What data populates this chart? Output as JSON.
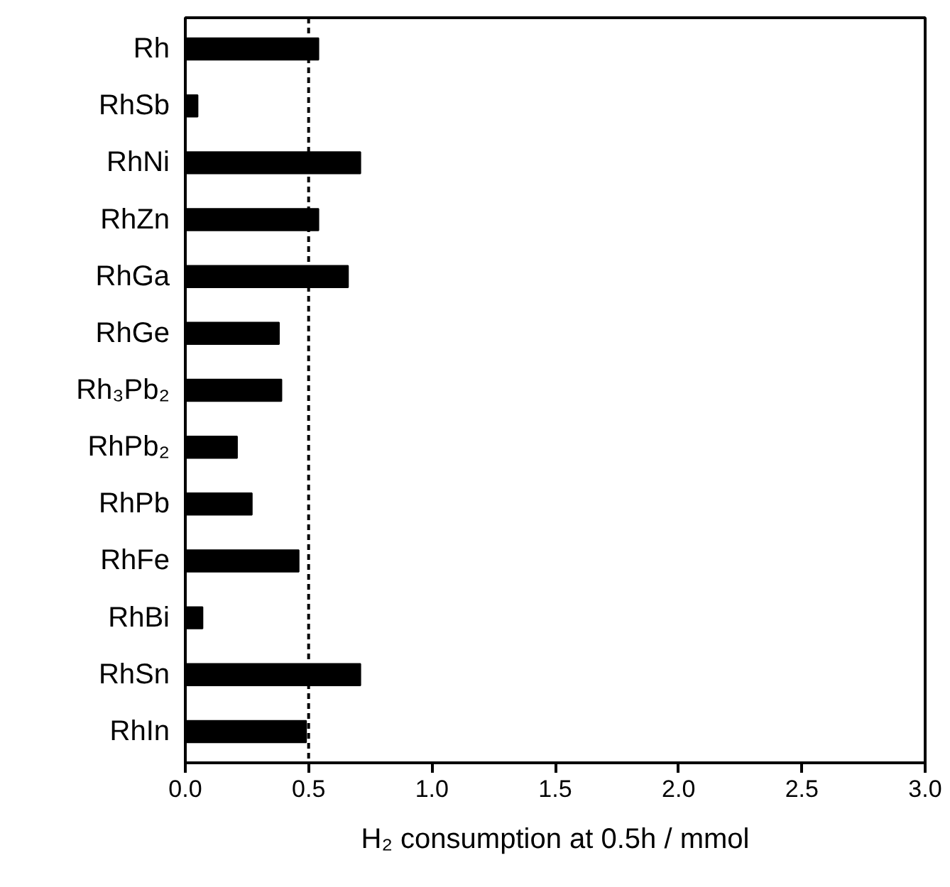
{
  "chart_data": {
    "type": "bar",
    "orientation": "horizontal",
    "xlabel": "H₂ consumption at 0.5h / mmol",
    "categories": [
      "Rh",
      "RhSb",
      "RhNi",
      "RhZn",
      "RhGa",
      "RhGe",
      "Rh₃Pb₂",
      "RhPb₂",
      "RhPb",
      "RhFe",
      "RhBi",
      "RhSn",
      "RhIn"
    ],
    "values": [
      0.54,
      0.05,
      0.71,
      0.54,
      0.66,
      0.38,
      0.39,
      0.21,
      0.27,
      0.46,
      0.07,
      0.71,
      0.49
    ],
    "color": "#000000",
    "xlim": [
      0,
      3
    ],
    "xticks": [
      {
        "value": 0,
        "label": "0.0"
      },
      {
        "value": 0.5,
        "label": "0.5"
      },
      {
        "value": 1,
        "label": "1.0"
      },
      {
        "value": 1.5,
        "label": "1.5"
      },
      {
        "value": 2,
        "label": "2.0"
      },
      {
        "value": 2.5,
        "label": "2.5"
      },
      {
        "value": 3,
        "label": "3.0"
      }
    ],
    "ref_lines": [
      {
        "axis": "x",
        "value": 0.5,
        "color": "#000000",
        "line_style": "dashed"
      }
    ],
    "grid": false
  }
}
